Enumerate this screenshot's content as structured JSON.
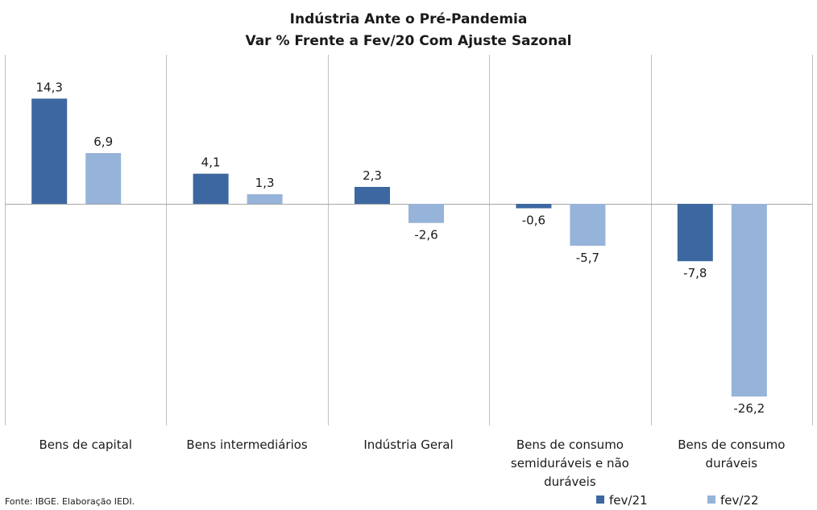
{
  "chart_data": {
    "type": "bar",
    "title": "Indústria  Ante o Pré-Pandemia",
    "subtitle": "Var % Frente a Fev/20 Com Ajuste Sazonal",
    "categories": [
      [
        "Bens de capital"
      ],
      [
        "Bens intermediários"
      ],
      [
        "Indústria Geral"
      ],
      [
        "Bens de consumo",
        "semiduráveis e não",
        "duráveis"
      ],
      [
        "Bens de consumo",
        "duráveis"
      ]
    ],
    "series": [
      {
        "name": "fev/21",
        "color": "#3D67A0",
        "values": [
          14.3,
          4.1,
          2.3,
          -0.6,
          -7.8
        ],
        "labels": [
          "14,3",
          "4,1",
          "2,3",
          "-0,6",
          "-7,8"
        ]
      },
      {
        "name": "fev/22",
        "color": "#96B3D9",
        "values": [
          6.9,
          1.3,
          -2.6,
          -5.7,
          -26.2
        ],
        "labels": [
          "6,9",
          "1,3",
          "-2,6",
          "-5,7",
          "-26,2"
        ]
      }
    ],
    "ylim": [
      -30,
      20
    ],
    "grid": false,
    "legend": "bottom-right",
    "xlabel": "",
    "ylabel": ""
  },
  "source": "Fonte: IBGE. Elaboração IEDI."
}
